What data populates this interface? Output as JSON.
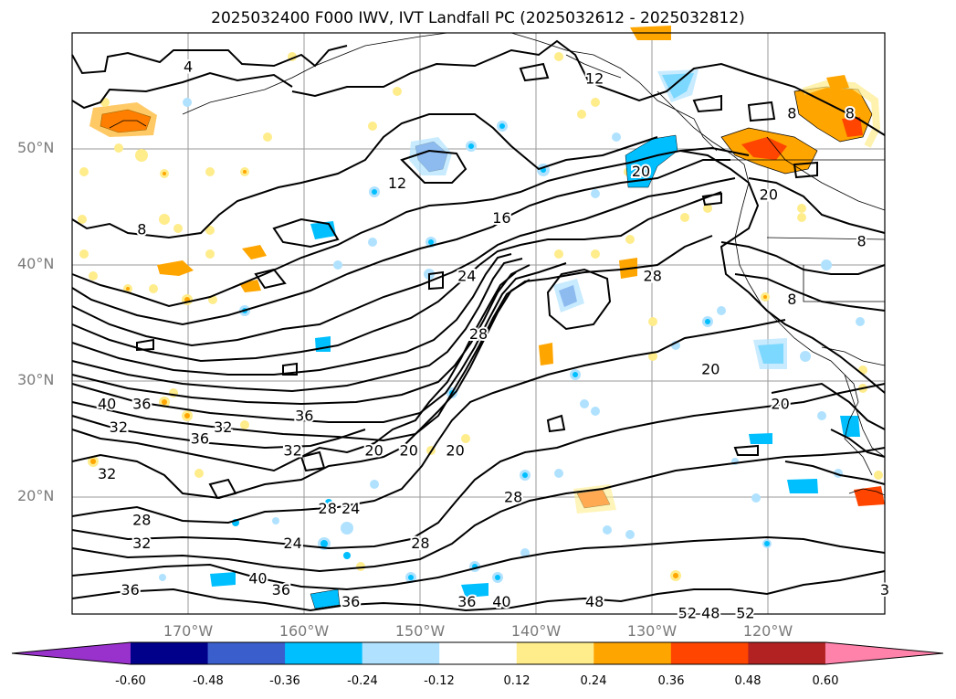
{
  "title": "2025032400 F000 IWV, IVT Landfall PC (2025032612 - 2025032812)",
  "lat_labels": [
    "50°N",
    "40°N",
    "30°N",
    "20°N"
  ],
  "lon_labels": [
    "170°W",
    "160°W",
    "150°W",
    "140°W",
    "130°W",
    "120°W"
  ],
  "colorbar": {
    "ticks": [
      "-0.60",
      "-0.48",
      "-0.36",
      "-0.24",
      "-0.12",
      "0.12",
      "0.24",
      "0.36",
      "0.48",
      "0.60"
    ],
    "colors": [
      "#9932cc",
      "#00008b",
      "#3a5fcd",
      "#00bfff",
      "#b0e2ff",
      "#ffffff",
      "#ffec8b",
      "#ffa500",
      "#ff4500",
      "#b22222",
      "#ff82ab"
    ]
  },
  "contour_labels": [
    {
      "text": "4",
      "lon": -170,
      "lat": 57
    },
    {
      "text": "8",
      "lon": -174,
      "lat": 43
    },
    {
      "text": "12",
      "lon": -135,
      "lat": 56
    },
    {
      "text": "12",
      "lon": -152,
      "lat": 47
    },
    {
      "text": "16",
      "lon": -143,
      "lat": 44
    },
    {
      "text": "20",
      "lon": -131,
      "lat": 48
    },
    {
      "text": "20",
      "lon": -120,
      "lat": 46
    },
    {
      "text": "24",
      "lon": -146,
      "lat": 39
    },
    {
      "text": "28",
      "lon": -130,
      "lat": 39
    },
    {
      "text": "28",
      "lon": -145,
      "lat": 34
    },
    {
      "text": "20",
      "lon": -125,
      "lat": 31
    },
    {
      "text": "20",
      "lon": -119,
      "lat": 28
    },
    {
      "text": "8",
      "lon": -118,
      "lat": 37
    },
    {
      "text": "8",
      "lon": -112,
      "lat": 42
    },
    {
      "text": "40",
      "lon": -177,
      "lat": 28
    },
    {
      "text": "36",
      "lon": -174,
      "lat": 28
    },
    {
      "text": "32",
      "lon": -176,
      "lat": 26
    },
    {
      "text": "36",
      "lon": -169,
      "lat": 25
    },
    {
      "text": "32",
      "lon": -167,
      "lat": 26
    },
    {
      "text": "36",
      "lon": -160,
      "lat": 27
    },
    {
      "text": "32",
      "lon": -161,
      "lat": 24
    },
    {
      "text": "20",
      "lon": -154,
      "lat": 24
    },
    {
      "text": "20",
      "lon": -151,
      "lat": 24
    },
    {
      "text": "20",
      "lon": -147,
      "lat": 24
    },
    {
      "text": "32",
      "lon": -177,
      "lat": 22
    },
    {
      "text": "28",
      "lon": -174,
      "lat": 18
    },
    {
      "text": "32",
      "lon": -174,
      "lat": 16
    },
    {
      "text": "28",
      "lon": -158,
      "lat": 19
    },
    {
      "text": "24",
      "lon": -156,
      "lat": 19
    },
    {
      "text": "28",
      "lon": -142,
      "lat": 20
    },
    {
      "text": "24",
      "lon": -161,
      "lat": 16
    },
    {
      "text": "28",
      "lon": -150,
      "lat": 16
    },
    {
      "text": "36",
      "lon": -175,
      "lat": 12
    },
    {
      "text": "40",
      "lon": -164,
      "lat": 13
    },
    {
      "text": "36",
      "lon": -162,
      "lat": 12
    },
    {
      "text": "36",
      "lon": -156,
      "lat": 11
    },
    {
      "text": "36",
      "lon": -146,
      "lat": 11
    },
    {
      "text": "40",
      "lon": -143,
      "lat": 11
    },
    {
      "text": "48",
      "lon": -135,
      "lat": 11
    },
    {
      "text": "52",
      "lon": -127,
      "lat": 10
    },
    {
      "text": "48",
      "lon": -125,
      "lat": 10
    },
    {
      "text": "52",
      "lon": -122,
      "lat": 10
    },
    {
      "text": "3",
      "lon": -110,
      "lat": 12
    },
    {
      "text": "8",
      "lon": -118,
      "lat": 53
    },
    {
      "text": "8",
      "lon": -113,
      "lat": 53
    }
  ]
}
